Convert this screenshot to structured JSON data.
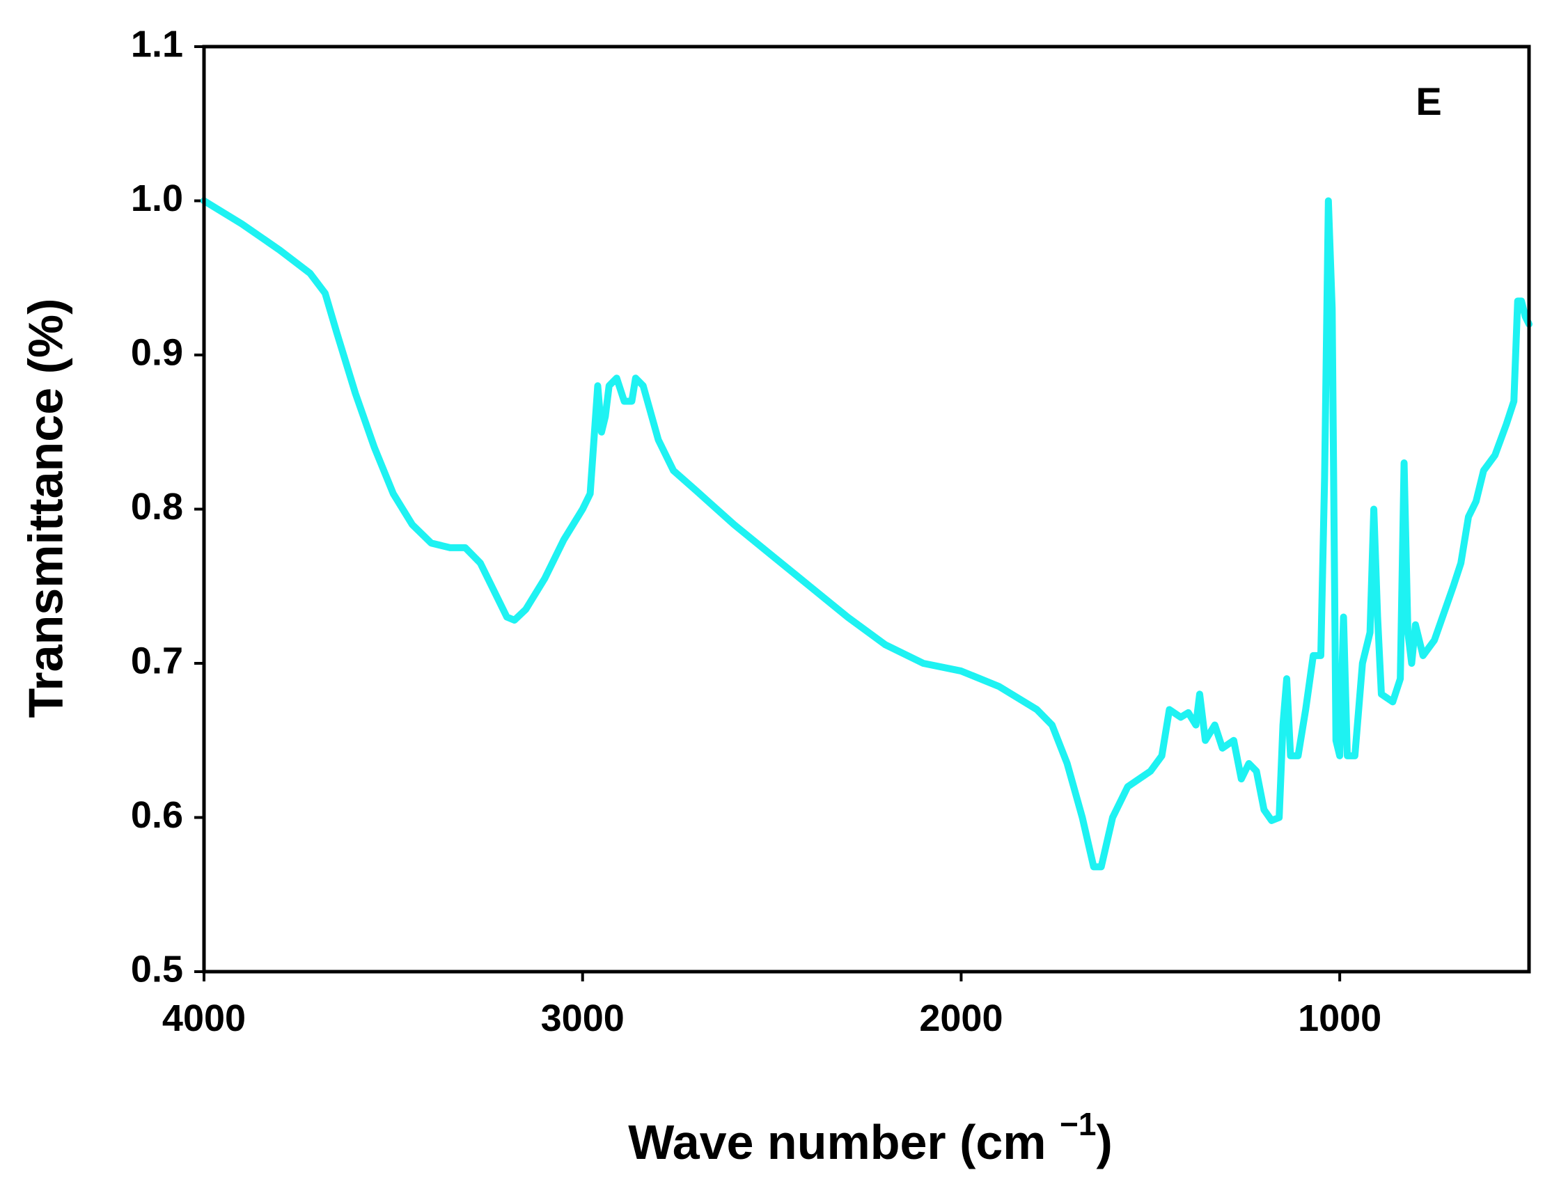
{
  "chart_data": {
    "type": "line",
    "x_label": [
      "Wave number  (cm ",
      "−1",
      ")"
    ],
    "y_label": "Transmittance (%)",
    "annotation": "E",
    "xlim": [
      4000,
      500
    ],
    "ylim": [
      0.5,
      1.1
    ],
    "xticks": [
      4000,
      3000,
      2000,
      1000
    ],
    "yticks": [
      0.5,
      0.6,
      0.7,
      0.8,
      0.9,
      {
        "value": 1.0,
        "label": "1.0"
      },
      1.1
    ],
    "grid": false,
    "series": [
      {
        "color": "#1ef2f2",
        "x": [
          4000,
          3900,
          3800,
          3720,
          3680,
          3650,
          3600,
          3550,
          3500,
          3450,
          3400,
          3350,
          3310,
          3270,
          3230,
          3200,
          3180,
          3150,
          3100,
          3050,
          3000,
          2980,
          2960,
          2950,
          2940,
          2930,
          2910,
          2890,
          2870,
          2860,
          2840,
          2800,
          2760,
          2700,
          2600,
          2500,
          2400,
          2300,
          2200,
          2100,
          2000,
          1900,
          1800,
          1760,
          1720,
          1680,
          1650,
          1630,
          1600,
          1560,
          1500,
          1470,
          1450,
          1420,
          1400,
          1380,
          1370,
          1355,
          1330,
          1310,
          1280,
          1260,
          1240,
          1220,
          1200,
          1180,
          1160,
          1150,
          1140,
          1130,
          1110,
          1090,
          1070,
          1050,
          1040,
          1030,
          1020,
          1010,
          1000,
          990,
          980,
          960,
          940,
          920,
          910,
          900,
          890,
          860,
          840,
          830,
          820,
          810,
          800,
          780,
          750,
          700,
          680,
          660,
          640,
          620,
          590,
          560,
          540,
          530,
          520,
          510,
          500
        ],
        "values": [
          1.0,
          0.985,
          0.968,
          0.953,
          0.94,
          0.915,
          0.875,
          0.84,
          0.81,
          0.79,
          0.778,
          0.775,
          0.775,
          0.765,
          0.745,
          0.73,
          0.728,
          0.735,
          0.755,
          0.78,
          0.8,
          0.81,
          0.88,
          0.85,
          0.86,
          0.88,
          0.885,
          0.87,
          0.87,
          0.885,
          0.88,
          0.845,
          0.825,
          0.812,
          0.79,
          0.77,
          0.75,
          0.73,
          0.712,
          0.7,
          0.695,
          0.685,
          0.67,
          0.66,
          0.635,
          0.6,
          0.568,
          0.568,
          0.6,
          0.62,
          0.63,
          0.64,
          0.67,
          0.665,
          0.668,
          0.66,
          0.68,
          0.65,
          0.66,
          0.645,
          0.65,
          0.625,
          0.635,
          0.63,
          0.605,
          0.598,
          0.6,
          0.66,
          0.69,
          0.64,
          0.64,
          0.67,
          0.705,
          0.705,
          0.82,
          1.0,
          0.93,
          0.65,
          0.64,
          0.73,
          0.64,
          0.64,
          0.7,
          0.72,
          0.8,
          0.73,
          0.68,
          0.675,
          0.69,
          0.83,
          0.72,
          0.7,
          0.725,
          0.705,
          0.715,
          0.75,
          0.765,
          0.795,
          0.805,
          0.825,
          0.835,
          0.855,
          0.87,
          0.935,
          0.935,
          0.925,
          0.92
        ]
      }
    ]
  }
}
